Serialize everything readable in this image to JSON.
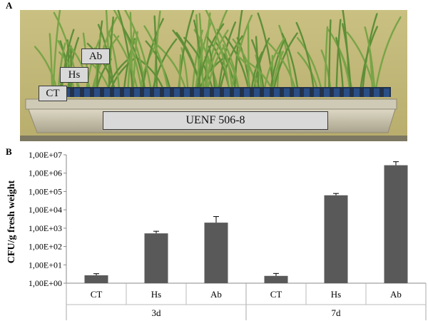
{
  "panels": {
    "a_label": "A",
    "b_label": "B"
  },
  "photo": {
    "tags": {
      "ab": "Ab",
      "hs": "Hs",
      "ct": "CT"
    },
    "tray_label": "UENF 506-8"
  },
  "chart_data": {
    "type": "bar",
    "ylabel": "CFU/g fresh weight",
    "y_scale": "log10",
    "ylim": [
      1,
      10000000
    ],
    "y_ticks": [
      "1,00E+00",
      "1,00E+01",
      "1,00E+02",
      "1,00E+03",
      "1,00E+04",
      "1,00E+05",
      "1,00E+06",
      "1,00E+07"
    ],
    "groups": [
      {
        "name": "3d",
        "categories": [
          "CT",
          "Hs",
          "Ab"
        ]
      },
      {
        "name": "7d",
        "categories": [
          "CT",
          "Hs",
          "Ab"
        ]
      }
    ],
    "values": [
      2.7,
      520,
      2000,
      2.5,
      62000,
      2700000
    ],
    "error_upper": [
      3.3,
      680,
      4300,
      3.4,
      78000,
      4200000
    ],
    "bar_color": "#595959",
    "grid": false
  }
}
